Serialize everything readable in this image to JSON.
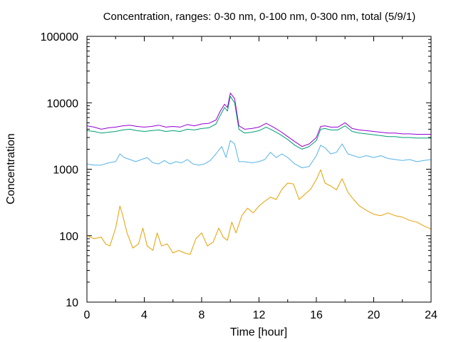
{
  "chart_data": {
    "type": "line",
    "title": "Concentration, ranges: 0-30 nm, 0-100 nm, 0-300 nm, total (5/9/1)",
    "xlabel": "Time [hour]",
    "ylabel": "Concentration",
    "xlim": [
      0,
      24
    ],
    "ylim": [
      10,
      100000
    ],
    "yscale": "log",
    "grid": false,
    "legend": "none",
    "x_ticks": [
      0,
      4,
      8,
      12,
      16,
      20,
      24
    ],
    "x_tick_labels": [
      "0",
      "4",
      "8",
      "12",
      "16",
      "20",
      "24"
    ],
    "y_ticks": [
      10,
      100,
      1000,
      10000,
      100000
    ],
    "y_tick_labels": [
      "10",
      "100",
      "1000",
      "10000",
      "100000"
    ],
    "series": [
      {
        "color": "#e69f00",
        "x": [
          0,
          0.5,
          1,
          1.3,
          1.6,
          2,
          2.3,
          2.5,
          2.8,
          3.2,
          3.6,
          3.9,
          4.2,
          4.6,
          4.9,
          5.2,
          5.6,
          6,
          6.4,
          6.8,
          7.2,
          7.6,
          8,
          8.4,
          8.8,
          9.2,
          9.5,
          9.8,
          10.1,
          10.4,
          10.8,
          11.2,
          11.6,
          12,
          12.4,
          12.8,
          13.2,
          13.6,
          14,
          14.4,
          14.8,
          15.2,
          15.6,
          16,
          16.3,
          16.6,
          17,
          17.4,
          17.8,
          18.2,
          18.6,
          19,
          19.5,
          20,
          20.5,
          21,
          21.5,
          22,
          22.5,
          23,
          23.5,
          24
        ],
        "y": [
          100,
          90,
          95,
          75,
          70,
          130,
          280,
          200,
          110,
          65,
          75,
          130,
          70,
          60,
          110,
          70,
          75,
          55,
          60,
          55,
          52,
          90,
          110,
          70,
          80,
          130,
          95,
          85,
          160,
          110,
          200,
          260,
          220,
          280,
          330,
          380,
          350,
          500,
          620,
          600,
          350,
          420,
          500,
          700,
          980,
          620,
          560,
          490,
          720,
          450,
          350,
          280,
          240,
          210,
          200,
          220,
          200,
          190,
          170,
          160,
          140,
          125
        ]
      },
      {
        "color": "#56b4e9",
        "x": [
          0,
          0.5,
          1,
          1.5,
          2,
          2.3,
          2.6,
          3,
          3.4,
          3.8,
          4.2,
          4.6,
          5,
          5.4,
          5.8,
          6.2,
          6.6,
          7,
          7.4,
          7.8,
          8.2,
          8.6,
          9,
          9.4,
          9.7,
          10,
          10.3,
          10.6,
          11,
          11.5,
          12,
          12.4,
          12.8,
          13.2,
          13.6,
          14,
          14.5,
          15,
          15.5,
          16,
          16.3,
          16.6,
          17,
          17.4,
          17.8,
          18.2,
          18.6,
          19,
          19.5,
          20,
          20.5,
          21,
          21.5,
          22,
          22.5,
          23,
          23.5,
          24
        ],
        "y": [
          1200,
          1150,
          1150,
          1250,
          1300,
          1700,
          1500,
          1400,
          1300,
          1400,
          1500,
          1250,
          1200,
          1350,
          1200,
          1300,
          1250,
          1400,
          1200,
          1150,
          1200,
          1350,
          1700,
          2200,
          1500,
          2700,
          2400,
          1300,
          1300,
          1250,
          1300,
          1400,
          1800,
          1500,
          1700,
          1500,
          1200,
          1050,
          1100,
          1600,
          2300,
          2100,
          1700,
          1800,
          2400,
          1700,
          1600,
          1500,
          1600,
          1500,
          1600,
          1450,
          1400,
          1350,
          1400,
          1300,
          1350,
          1400
        ]
      },
      {
        "color": "#009e73",
        "x": [
          0,
          0.5,
          1,
          1.5,
          2,
          2.5,
          3,
          3.5,
          4,
          4.5,
          5,
          5.5,
          6,
          6.5,
          7,
          7.5,
          8,
          8.5,
          9,
          9.3,
          9.6,
          9.8,
          10,
          10.3,
          10.6,
          11,
          11.5,
          12,
          12.5,
          13,
          13.5,
          14,
          14.5,
          15,
          15.5,
          16,
          16.3,
          16.6,
          17,
          17.5,
          18,
          18.5,
          19,
          19.5,
          20,
          20.5,
          21,
          21.5,
          22,
          22.5,
          23,
          23.5,
          24
        ],
        "y": [
          3800,
          3700,
          3500,
          3600,
          3700,
          3900,
          4000,
          3800,
          3700,
          3800,
          3900,
          3700,
          3800,
          3700,
          4000,
          3900,
          4100,
          4200,
          4800,
          6500,
          8500,
          7500,
          12500,
          10000,
          4000,
          3500,
          3600,
          3800,
          4300,
          3800,
          3300,
          2800,
          2300,
          2000,
          2200,
          2700,
          4000,
          4100,
          3900,
          3900,
          4500,
          3700,
          3500,
          3400,
          3300,
          3200,
          3100,
          3100,
          3000,
          3000,
          2950,
          2950,
          2950
        ]
      },
      {
        "color": "#9400d3",
        "x": [
          0,
          0.5,
          1,
          1.5,
          2,
          2.5,
          3,
          3.5,
          4,
          4.5,
          5,
          5.5,
          6,
          6.5,
          7,
          7.5,
          8,
          8.5,
          9,
          9.3,
          9.6,
          9.8,
          10,
          10.3,
          10.6,
          11,
          11.5,
          12,
          12.5,
          13,
          13.5,
          14,
          14.5,
          15,
          15.5,
          16,
          16.3,
          16.6,
          17,
          17.5,
          18,
          18.5,
          19,
          19.5,
          20,
          20.5,
          21,
          21.5,
          22,
          22.5,
          23,
          23.5,
          24
        ],
        "y": [
          4500,
          4300,
          4000,
          4200,
          4300,
          4500,
          4600,
          4400,
          4300,
          4400,
          4600,
          4300,
          4400,
          4300,
          4700,
          4500,
          4800,
          4900,
          5500,
          7500,
          9500,
          8500,
          14000,
          11500,
          4500,
          4000,
          4100,
          4300,
          4900,
          4300,
          3700,
          3100,
          2600,
          2200,
          2400,
          3000,
          4400,
          4500,
          4300,
          4300,
          5000,
          4100,
          3900,
          3800,
          3700,
          3600,
          3500,
          3500,
          3400,
          3400,
          3350,
          3350,
          3350
        ]
      }
    ]
  }
}
